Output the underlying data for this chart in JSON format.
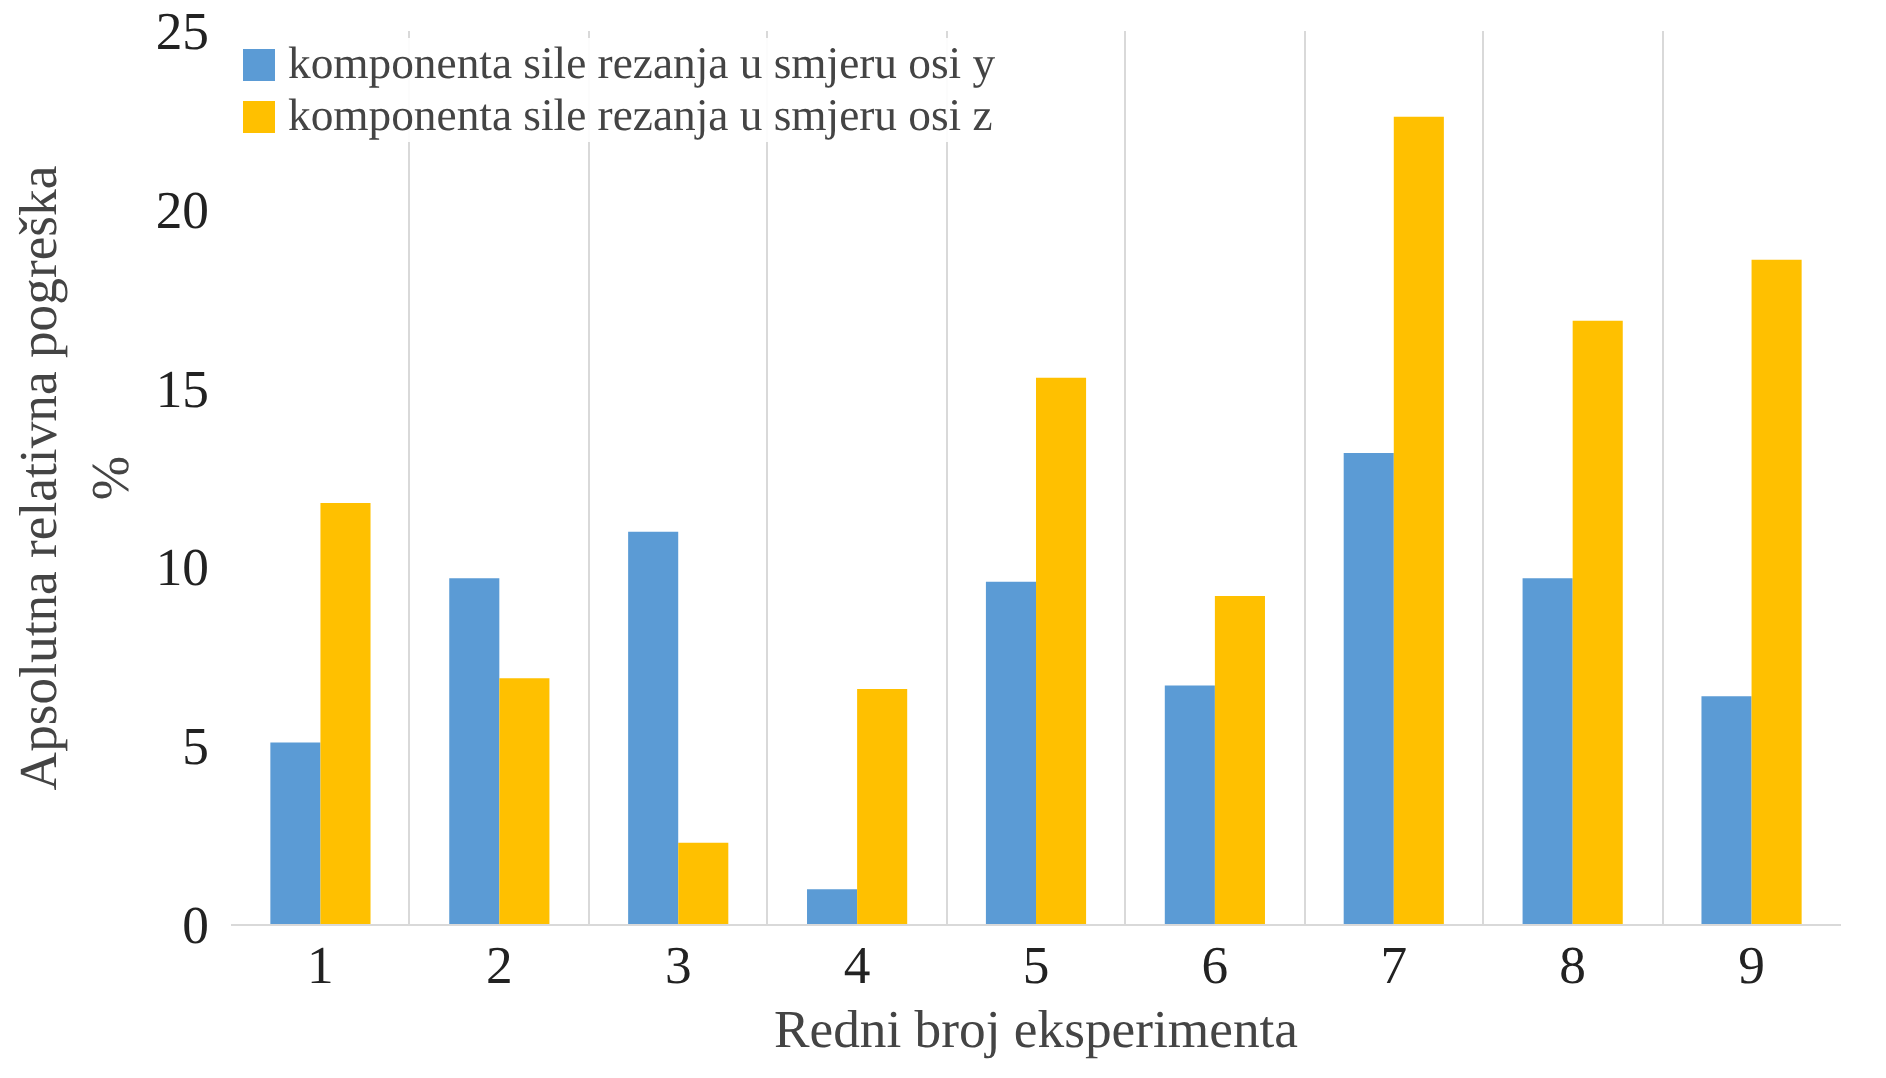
{
  "chart_data": {
    "type": "bar",
    "xlabel": "Redni broj eksperimenta",
    "ylabel": "Apsolutna relativna pogreška\n%",
    "categories": [
      "1",
      "2",
      "3",
      "4",
      "5",
      "6",
      "7",
      "8",
      "9"
    ],
    "series": [
      {
        "name": "komponenta sile rezanja u smjeru osi y",
        "color": "#5b9bd5",
        "values": [
          5.1,
          9.7,
          11.0,
          1.0,
          9.6,
          6.7,
          13.2,
          9.7,
          6.4
        ]
      },
      {
        "name": "komponenta sile rezanja u smjeru osi z",
        "color": "#ffc000",
        "values": [
          11.8,
          6.9,
          2.3,
          6.6,
          15.3,
          9.2,
          22.6,
          16.9,
          18.6
        ]
      }
    ],
    "ylim": [
      0,
      25
    ],
    "yticks": [
      0,
      5,
      10,
      15,
      20,
      25
    ],
    "grid": "x",
    "legend": "top left"
  }
}
